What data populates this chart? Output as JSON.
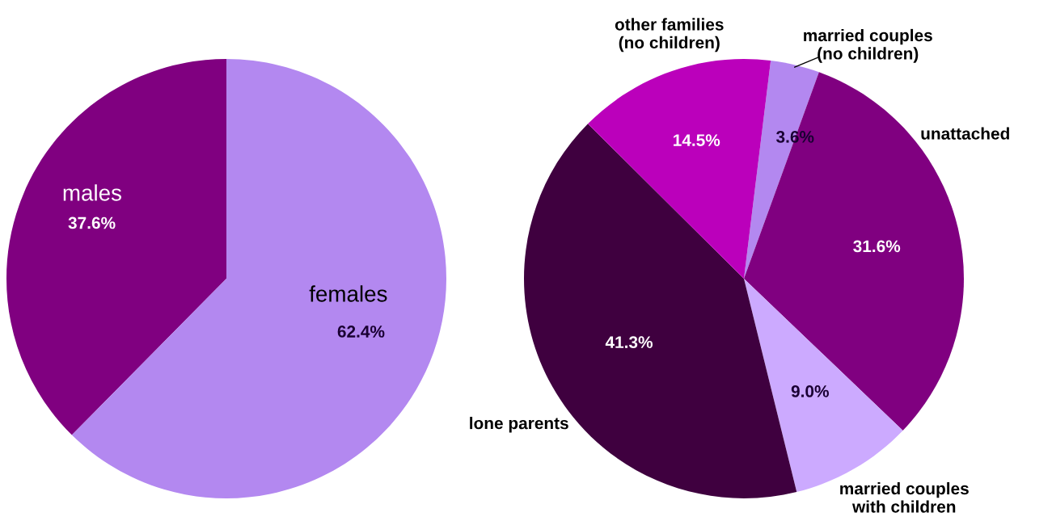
{
  "chart_data": [
    {
      "type": "pie",
      "categories": [
        "males",
        "females"
      ],
      "values": [
        37.6,
        62.4
      ],
      "colors": [
        "#800080",
        "#b388f0"
      ],
      "value_labels": [
        "37.6%",
        "62.4%"
      ],
      "legend": false
    },
    {
      "type": "pie",
      "categories": [
        "married couples\n(no children)",
        "unattached",
        "married couples\nwith children",
        "lone parents",
        "other families\n(no children)"
      ],
      "values": [
        3.6,
        31.6,
        9.0,
        41.3,
        14.5
      ],
      "colors": [
        "#b388f0",
        "#800080",
        "#ccaaff",
        "#3f003f",
        "#bb00bb"
      ],
      "value_labels": [
        "3.6%",
        "31.6%",
        "9.0%",
        "41.3%",
        "14.5%"
      ],
      "legend": false
    }
  ]
}
